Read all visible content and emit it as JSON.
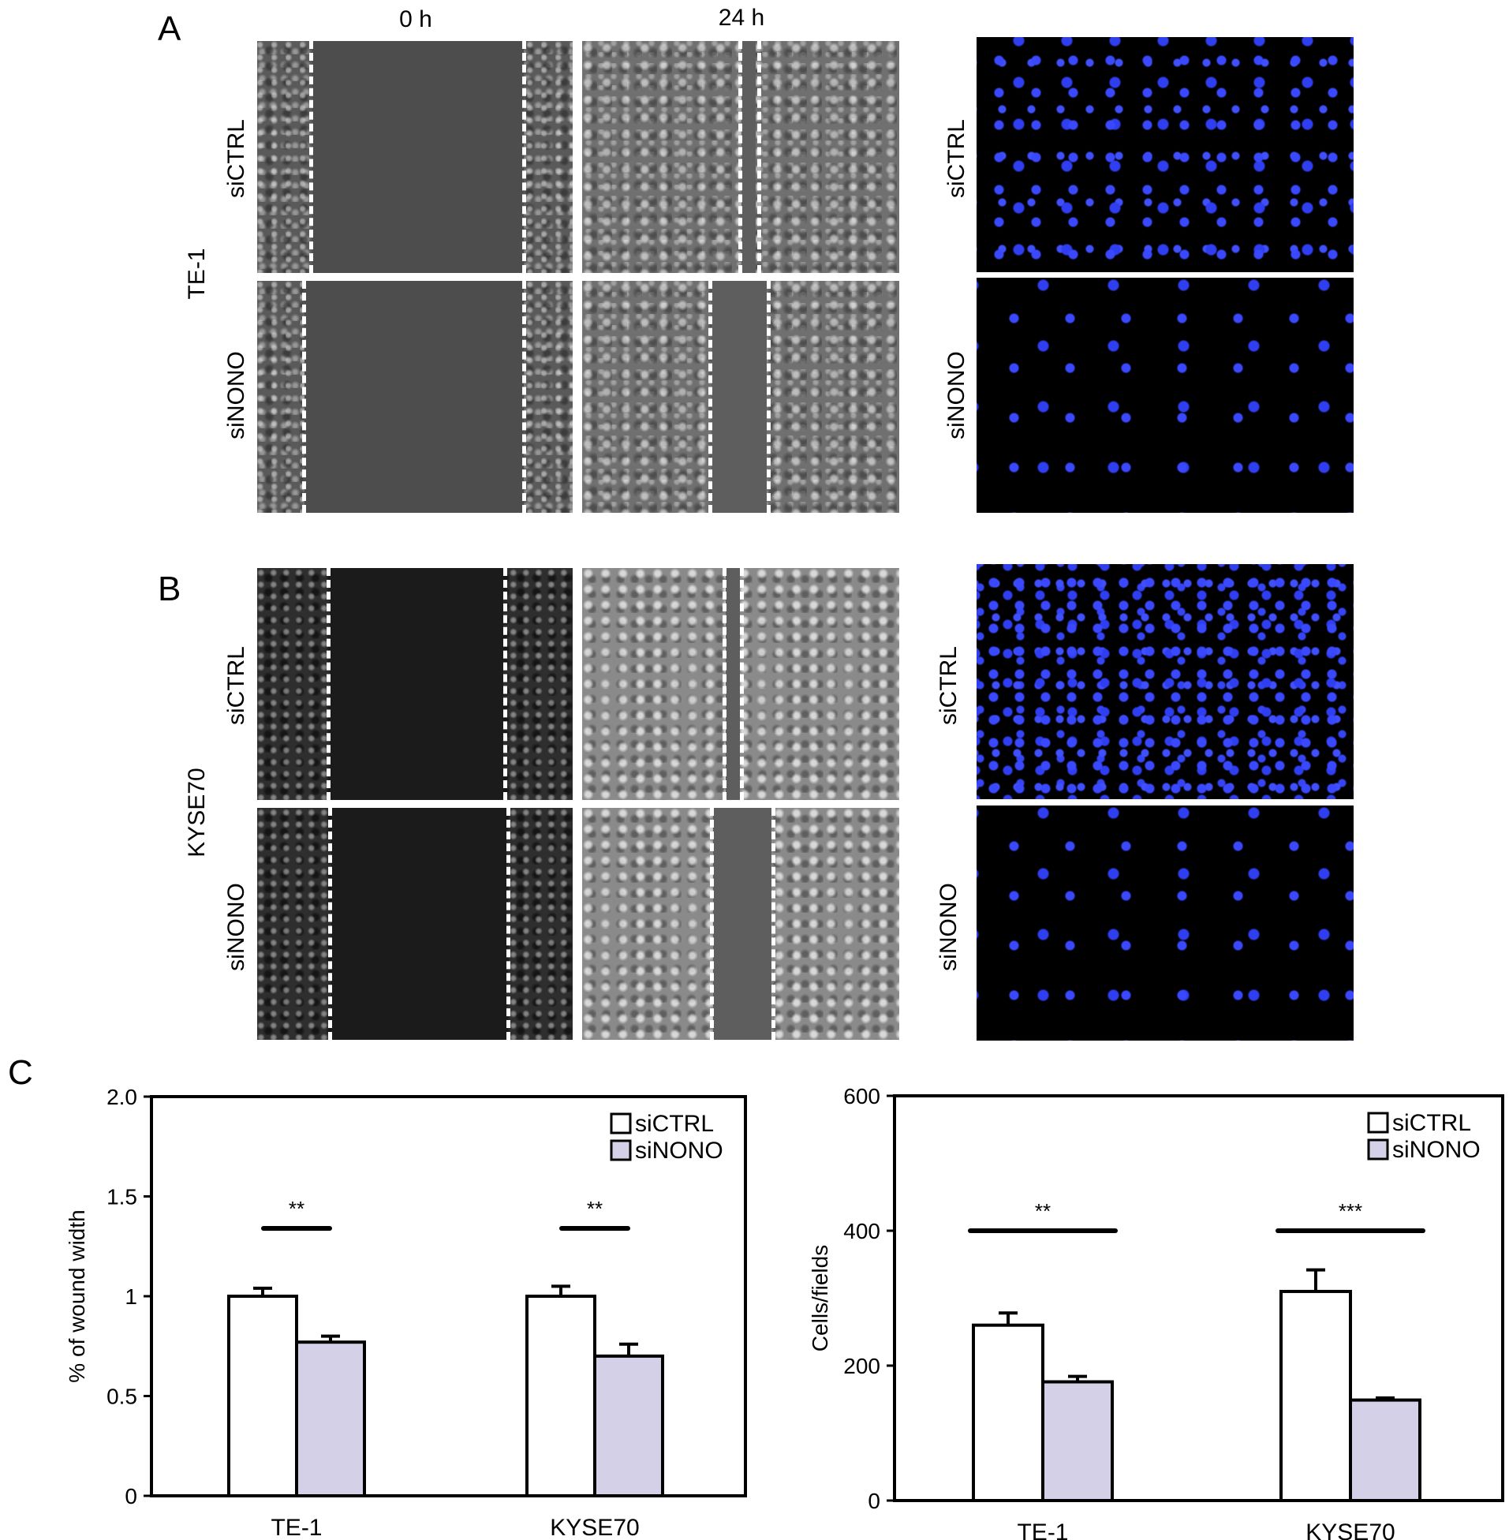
{
  "panels": {
    "A": "A",
    "B": "B",
    "C": "C"
  },
  "columns": {
    "t0": "0 h",
    "t24": "24 h"
  },
  "cell_lines": {
    "a": "TE-1",
    "b": "KYSE70"
  },
  "row_labels": {
    "ctrl": "siCTRL",
    "kd": "siNONO"
  },
  "colors": {
    "ctrl_bar": "#ffffff",
    "kd_bar": "#d3d0e8",
    "nuclei": "#3a49ff"
  },
  "chart_data": [
    {
      "type": "bar",
      "categories": [
        "TE-1",
        "KYSE70"
      ],
      "series": [
        {
          "name": "siCTRL",
          "values": [
            1.0,
            1.0
          ],
          "errors": [
            0.04,
            0.05
          ]
        },
        {
          "name": "siNONO",
          "values": [
            0.77,
            0.7
          ],
          "errors": [
            0.03,
            0.06
          ]
        }
      ],
      "ylabel": "% of wound width",
      "ylim": [
        0,
        2.0
      ],
      "yticks": [
        "0",
        "0.5",
        "1",
        "1.5",
        "2.0"
      ],
      "yticks_values": [
        0,
        0.5,
        1,
        1.5,
        2.0
      ],
      "significance": [
        "**",
        "**"
      ],
      "significance_level": [
        1.34,
        1.34
      ],
      "legend": "top-right"
    },
    {
      "type": "bar",
      "categories": [
        "TE-1",
        "KYSE70"
      ],
      "series": [
        {
          "name": "siCTRL",
          "values": [
            260,
            310
          ],
          "errors": [
            18,
            32
          ]
        },
        {
          "name": "siNONO",
          "values": [
            176,
            149
          ],
          "errors": [
            8,
            3
          ]
        }
      ],
      "ylabel": "Cells/fields",
      "ylim": [
        0,
        600
      ],
      "yticks": [
        "0",
        "200",
        "400",
        "600"
      ],
      "yticks_values": [
        0,
        200,
        400,
        600
      ],
      "significance": [
        "**",
        "***"
      ],
      "significance_level": [
        400,
        400
      ],
      "legend": "top-right"
    }
  ]
}
